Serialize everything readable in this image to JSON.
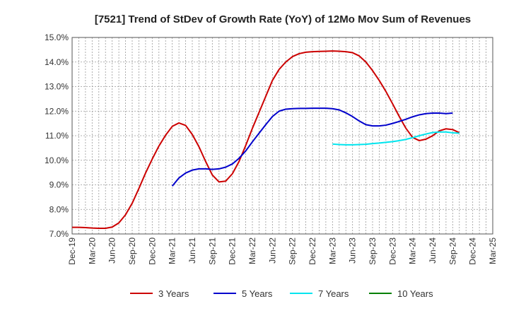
{
  "chart_data": {
    "type": "line",
    "title": "[7521]  Trend of StDev of Growth Rate (YoY) of 12Mo Mov Sum of Revenues",
    "xlabel": "",
    "ylabel": "",
    "ylim": [
      7.0,
      15.0
    ],
    "y_ticks": [
      7.0,
      8.0,
      9.0,
      10.0,
      11.0,
      12.0,
      13.0,
      14.0,
      15.0
    ],
    "y_tick_labels": [
      "7.0%",
      "8.0%",
      "9.0%",
      "10.0%",
      "11.0%",
      "12.0%",
      "13.0%",
      "14.0%",
      "15.0%"
    ],
    "x_tick_labels": [
      "Dec-19",
      "Mar-20",
      "Jun-20",
      "Sep-20",
      "Dec-20",
      "Mar-21",
      "Jun-21",
      "Sep-21",
      "Dec-21",
      "Mar-22",
      "Jun-22",
      "Sep-22",
      "Dec-22",
      "Mar-23",
      "Jun-23",
      "Sep-23",
      "Dec-23",
      "Mar-24",
      "Jun-24",
      "Sep-24",
      "Dec-24",
      "Mar-25"
    ],
    "x_start": "Dec-19",
    "x_months": 63,
    "grid": true,
    "legend_position": "bottom",
    "series": [
      {
        "name": "3 Years",
        "color": "#cc0000",
        "start_index": 0,
        "values": [
          7.27,
          7.27,
          7.26,
          7.24,
          7.23,
          7.23,
          7.28,
          7.45,
          7.78,
          8.25,
          8.85,
          9.48,
          10.05,
          10.58,
          11.02,
          11.38,
          11.52,
          11.42,
          11.05,
          10.55,
          9.95,
          9.4,
          9.12,
          9.15,
          9.45,
          9.95,
          10.6,
          11.3,
          11.95,
          12.6,
          13.25,
          13.7,
          14.0,
          14.22,
          14.34,
          14.4,
          14.42,
          14.43,
          14.44,
          14.45,
          14.44,
          14.42,
          14.38,
          14.25,
          14.0,
          13.65,
          13.25,
          12.8,
          12.3,
          11.78,
          11.3,
          10.93,
          10.8,
          10.86,
          11.0,
          11.2,
          11.28,
          11.25,
          11.12
        ]
      },
      {
        "name": "5 Years",
        "color": "#0000cc",
        "start_index": 15,
        "values": [
          8.95,
          9.28,
          9.48,
          9.6,
          9.65,
          9.65,
          9.63,
          9.65,
          9.72,
          9.85,
          10.08,
          10.38,
          10.75,
          11.1,
          11.45,
          11.78,
          12.0,
          12.08,
          12.1,
          12.11,
          12.11,
          12.12,
          12.12,
          12.12,
          12.1,
          12.05,
          11.93,
          11.78,
          11.6,
          11.45,
          11.4,
          11.4,
          11.43,
          11.5,
          11.58,
          11.67,
          11.77,
          11.85,
          11.9,
          11.92,
          11.92,
          11.9,
          11.92
        ]
      },
      {
        "name": "7 Years",
        "color": "#00e5ee",
        "start_index": 39,
        "values": [
          10.66,
          10.64,
          10.63,
          10.63,
          10.64,
          10.65,
          10.68,
          10.7,
          10.73,
          10.76,
          10.8,
          10.85,
          10.92,
          11.0,
          11.07,
          11.13,
          11.15,
          11.15,
          11.12,
          11.1
        ]
      },
      {
        "name": "10 Years",
        "color": "#008000",
        "start_index": 0,
        "values": []
      }
    ]
  }
}
